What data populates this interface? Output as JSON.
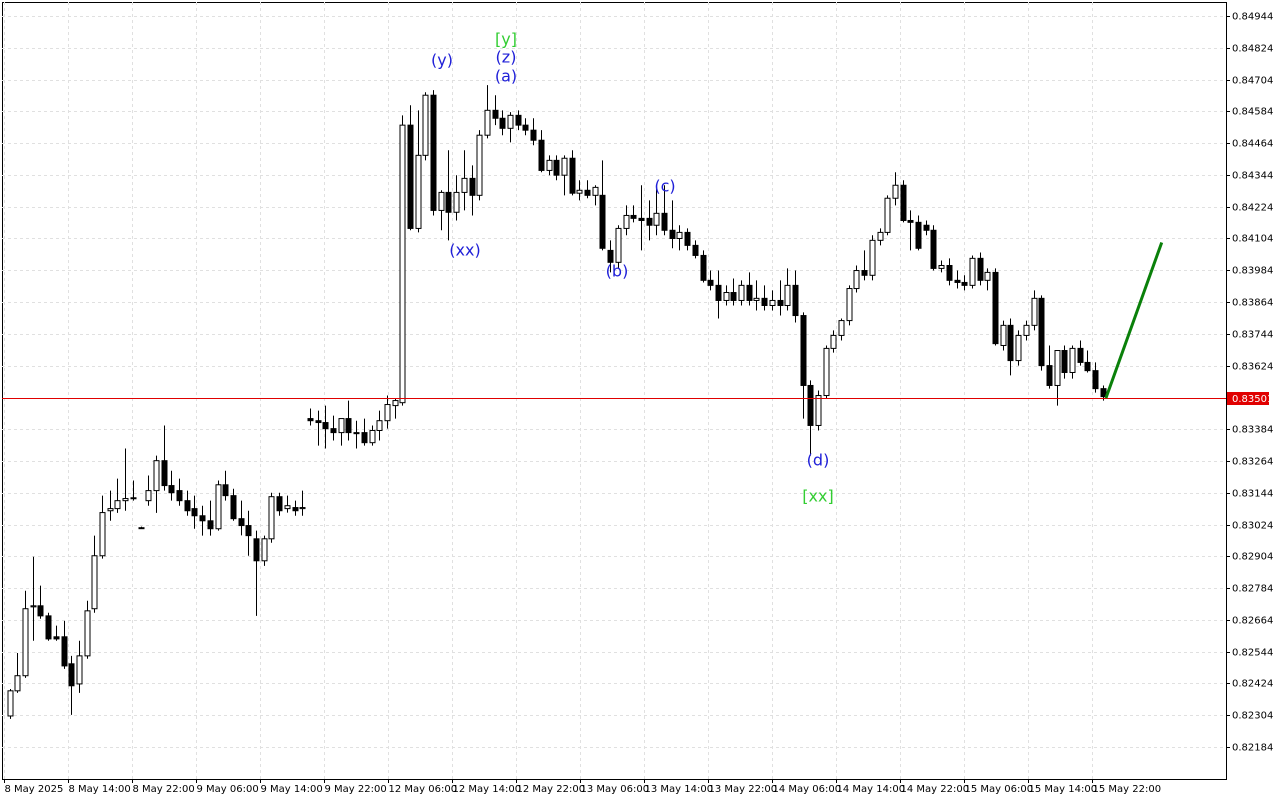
{
  "chart_data": {
    "type": "candlestick",
    "xlim": [
      -1,
      158
    ],
    "ylim": [
      0.82063,
      0.84997
    ],
    "grid": true,
    "up_color": "#ffffff",
    "down_color": "#000000",
    "outline_color": "#000000",
    "grid_color": "#e0e0e0",
    "yticks": [
      0.84944,
      0.84824,
      0.84704,
      0.84584,
      0.84464,
      0.84344,
      0.84224,
      0.84104,
      0.83984,
      0.83864,
      0.83744,
      0.83624,
      0.83384,
      0.83264,
      0.83144,
      0.83024,
      0.82904,
      0.82784,
      0.82664,
      0.82544,
      0.82424,
      0.82304,
      0.82184
    ],
    "xticks": [
      {
        "value": -0.74,
        "label": "8 May 2025"
      },
      {
        "value": 7.57,
        "label": "8 May 14:00"
      },
      {
        "value": 15.88,
        "label": "8 May 22:00"
      },
      {
        "value": 24.19,
        "label": "9 May 06:00"
      },
      {
        "value": 32.5,
        "label": "9 May 14:00"
      },
      {
        "value": 40.81,
        "label": "9 May 22:00"
      },
      {
        "value": 49.12,
        "label": "12 May 06:00"
      },
      {
        "value": 57.43,
        "label": "12 May 14:00"
      },
      {
        "value": 65.74,
        "label": "12 May 22:00"
      },
      {
        "value": 74.05,
        "label": "13 May 06:00"
      },
      {
        "value": 82.36,
        "label": "13 May 14:00"
      },
      {
        "value": 90.67,
        "label": "13 May 22:00"
      },
      {
        "value": 98.98,
        "label": "14 May 06:00"
      },
      {
        "value": 107.29,
        "label": "14 May 14:00"
      },
      {
        "value": 115.6,
        "label": "14 May 22:00"
      },
      {
        "value": 123.91,
        "label": "15 May 06:00"
      },
      {
        "value": 132.22,
        "label": "15 May 14:00"
      },
      {
        "value": 140.53,
        "label": "15 May 22:00"
      }
    ],
    "open": [
      0.82301,
      0.82396,
      0.82453,
      0.82713,
      0.82717,
      0.82679,
      0.826,
      0.826,
      0.82498,
      0.82422,
      0.82528,
      0.82706,
      0.82906,
      0.83076,
      0.83084,
      0.83114,
      0.83122,
      0.83012,
      0.83114,
      0.83152,
      0.83265,
      0.83171,
      0.83152,
      0.83114,
      0.83084,
      0.83057,
      0.83038,
      0.83008,
      0.83174,
      0.83133,
      0.83046,
      0.8302,
      0.8297,
      0.82887,
      0.8297,
      0.83129,
      0.83084,
      0.83088,
      0.83084,
      0.83424,
      0.83416,
      0.83409,
      0.83386,
      0.83371,
      0.83424,
      0.83371,
      0.83371,
      0.83333,
      0.83379,
      0.83416,
      0.83473,
      0.83484,
      0.84532,
      0.84142,
      0.84418,
      0.84645,
      0.8421,
      0.84278,
      0.84203,
      0.84278,
      0.84331,
      0.84267,
      0.84494,
      0.84588,
      0.84558,
      0.8452,
      0.84569,
      0.84532,
      0.84513,
      0.84475,
      0.84361,
      0.84399,
      0.84343,
      0.84407,
      0.84275,
      0.84286,
      0.84267,
      0.84267,
      0.84059,
      0.84014,
      0.84142,
      0.84191,
      0.8418,
      0.8418,
      0.84154,
      0.84199,
      0.84135,
      0.84104,
      0.84127,
      0.84078,
      0.8404,
      0.83946,
      0.83927,
      0.8387,
      0.839,
      0.8387,
      0.83927,
      0.8387,
      0.83878,
      0.83851,
      0.8387,
      0.83851,
      0.83927,
      0.83813,
      0.83549,
      0.83398,
      0.83511,
      0.83689,
      0.83738,
      0.83794,
      0.83915,
      0.83983,
      0.83965,
      0.84097,
      0.84127,
      0.84256,
      0.84305,
      0.84172,
      0.84165,
      0.84154,
      0.84135,
      0.83991,
      0.84002,
      0.83946,
      0.83938,
      0.83927,
      0.84029,
      0.83946,
      0.83976,
      0.837,
      0.83776,
      0.83643,
      0.83738,
      0.83776,
      0.83878,
      0.83624,
      0.83549,
      0.83681,
      0.83598,
      0.83689,
      0.83636,
      0.83605,
      0.83537
    ],
    "high": [
      0.82403,
      0.82539,
      0.82774,
      0.82902,
      0.82793,
      0.82691,
      0.82642,
      0.8266,
      0.82528,
      0.82585,
      0.82736,
      0.82982,
      0.83133,
      0.83152,
      0.83197,
      0.83311,
      0.8319,
      0.83016,
      0.83209,
      0.83284,
      0.83398,
      0.83227,
      0.83197,
      0.83152,
      0.83133,
      0.83095,
      0.83114,
      0.8319,
      0.83227,
      0.83159,
      0.83114,
      0.83076,
      0.83001,
      0.82982,
      0.83144,
      0.83144,
      0.83133,
      0.83114,
      0.83152,
      0.83462,
      0.83454,
      0.83473,
      0.83435,
      0.83416,
      0.83492,
      0.83416,
      0.83424,
      0.83398,
      0.83454,
      0.83511,
      0.835,
      0.84569,
      0.84607,
      0.84588,
      0.84656,
      0.84664,
      0.84286,
      0.84437,
      0.84343,
      0.84437,
      0.8438,
      0.84513,
      0.84683,
      0.84645,
      0.84588,
      0.84581,
      0.84588,
      0.84558,
      0.84558,
      0.84513,
      0.84418,
      0.84418,
      0.84418,
      0.84437,
      0.84324,
      0.84324,
      0.84305,
      0.84399,
      0.84097,
      0.84154,
      0.84229,
      0.84229,
      0.84305,
      0.84248,
      0.84305,
      0.84305,
      0.84248,
      0.84154,
      0.84142,
      0.84097,
      0.84059,
      0.83983,
      0.83983,
      0.83927,
      0.83953,
      0.83946,
      0.83976,
      0.83946,
      0.83927,
      0.83908,
      0.83946,
      0.83991,
      0.83983,
      0.83825,
      0.83568,
      0.8353,
      0.837,
      0.83757,
      0.83802,
      0.83927,
      0.84002,
      0.84059,
      0.84116,
      0.84142,
      0.84267,
      0.84354,
      0.84324,
      0.8421,
      0.84191,
      0.84172,
      0.84154,
      0.84021,
      0.84029,
      0.83983,
      0.83965,
      0.8404,
      0.84051,
      0.83991,
      0.83991,
      0.83794,
      0.83802,
      0.83757,
      0.83794,
      0.83908,
      0.83889,
      0.837,
      0.83681,
      0.837,
      0.837,
      0.83719,
      0.83681,
      0.83636,
      0.83549
    ],
    "low": [
      0.8229,
      0.82388,
      0.82445,
      0.82585,
      0.82668,
      0.82585,
      0.82585,
      0.82479,
      0.82305,
      0.82388,
      0.82517,
      0.82691,
      0.82895,
      0.83038,
      0.83068,
      0.83076,
      0.83114,
      0.83008,
      0.83095,
      0.83068,
      0.83152,
      0.83114,
      0.83095,
      0.83057,
      0.83008,
      0.82982,
      0.82982,
      0.83001,
      0.83114,
      0.83038,
      0.82983,
      0.82906,
      0.82679,
      0.82868,
      0.82955,
      0.83057,
      0.83069,
      0.83057,
      0.83057,
      0.83398,
      0.83322,
      0.83311,
      0.83341,
      0.83322,
      0.83341,
      0.83311,
      0.83322,
      0.83322,
      0.83341,
      0.83386,
      0.83424,
      0.83473,
      0.84135,
      0.84127,
      0.84399,
      0.84191,
      0.84135,
      0.84097,
      0.84172,
      0.8421,
      0.84191,
      0.84248,
      0.84482,
      0.84532,
      0.84494,
      0.84467,
      0.84513,
      0.84494,
      0.84456,
      0.84354,
      0.84343,
      0.84324,
      0.84267,
      0.84267,
      0.84248,
      0.84256,
      0.84229,
      0.84059,
      0.83976,
      0.83991,
      0.84116,
      0.84165,
      0.84059,
      0.84097,
      0.84116,
      0.84116,
      0.84067,
      0.84059,
      0.84059,
      0.84029,
      0.83938,
      0.83908,
      0.83802,
      0.83851,
      0.83851,
      0.83851,
      0.83851,
      0.83832,
      0.83832,
      0.83832,
      0.83813,
      0.83832,
      0.83787,
      0.83424,
      0.83284,
      0.83379,
      0.835,
      0.83673,
      0.83719,
      0.83776,
      0.839,
      0.83946,
      0.83946,
      0.84078,
      0.84116,
      0.84229,
      0.84165,
      0.84059,
      0.84059,
      0.84116,
      0.83983,
      0.83976,
      0.83927,
      0.83915,
      0.83908,
      0.83915,
      0.83927,
      0.83908,
      0.837,
      0.83681,
      0.83587,
      0.83624,
      0.83719,
      0.83757,
      0.83605,
      0.83537,
      0.83473,
      0.83575,
      0.83575,
      0.83624,
      0.83598,
      0.83522,
      0.83492
    ],
    "close": [
      0.82396,
      0.82453,
      0.82706,
      0.82717,
      0.82679,
      0.82592,
      0.82592,
      0.8249,
      0.82415,
      0.82528,
      0.82698,
      0.82906,
      0.83069,
      0.83084,
      0.83114,
      0.83122,
      0.83125,
      0.83012,
      0.83152,
      0.83265,
      0.83171,
      0.83144,
      0.83114,
      0.83076,
      0.83057,
      0.83038,
      0.83008,
      0.83174,
      0.83133,
      0.83046,
      0.8302,
      0.82982,
      0.82887,
      0.8297,
      0.83129,
      0.83076,
      0.83095,
      0.83076,
      0.83088,
      0.83416,
      0.83409,
      0.83386,
      0.83371,
      0.83424,
      0.83371,
      0.83367,
      0.83333,
      0.83379,
      0.83416,
      0.83477,
      0.83492,
      0.84532,
      0.84142,
      0.84418,
      0.84645,
      0.8421,
      0.84278,
      0.84203,
      0.84278,
      0.84331,
      0.84267,
      0.84494,
      0.84588,
      0.84558,
      0.8452,
      0.84569,
      0.84532,
      0.84513,
      0.84475,
      0.84361,
      0.84399,
      0.84343,
      0.84407,
      0.84275,
      0.84286,
      0.84267,
      0.84297,
      0.84067,
      0.84014,
      0.84142,
      0.84191,
      0.8418,
      0.84172,
      0.84154,
      0.84199,
      0.84135,
      0.84104,
      0.84127,
      0.84078,
      0.8404,
      0.83946,
      0.83927,
      0.8387,
      0.839,
      0.8387,
      0.83927,
      0.8387,
      0.83878,
      0.83851,
      0.8387,
      0.83851,
      0.83927,
      0.83813,
      0.83549,
      0.83398,
      0.83511,
      0.83689,
      0.83738,
      0.83794,
      0.83915,
      0.83983,
      0.83965,
      0.84097,
      0.84127,
      0.84256,
      0.84305,
      0.84172,
      0.84165,
      0.84067,
      0.84135,
      0.83991,
      0.84002,
      0.83946,
      0.83938,
      0.83927,
      0.84029,
      0.83946,
      0.83976,
      0.83707,
      0.83776,
      0.83643,
      0.83738,
      0.83776,
      0.83878,
      0.83624,
      0.83549,
      0.83681,
      0.83598,
      0.83689,
      0.83636,
      0.83605,
      0.83537,
      0.83507
    ],
    "current_price": {
      "value": 0.83501,
      "color": "#e00000"
    },
    "forecast": {
      "color": "#0a800a",
      "x": [
        142.4,
        149.65
      ],
      "values": [
        0.83501,
        0.84089
      ]
    },
    "annotations": [
      {
        "text": "(y)",
        "color": "#2020d8"
      },
      {
        "text": "[y]",
        "color": "#32cd32"
      },
      {
        "text": "(z)",
        "color": "#2020d8"
      },
      {
        "text": "(a)",
        "color": "#2020d8"
      },
      {
        "text": "(xx)",
        "color": "#2020d8"
      },
      {
        "text": "(b)",
        "color": "#2020d8"
      },
      {
        "text": "(c)",
        "color": "#2020d8"
      },
      {
        "text": "(d)",
        "color": "#2020d8"
      },
      {
        "text": "[xx]",
        "color": "#32cd32"
      }
    ]
  }
}
